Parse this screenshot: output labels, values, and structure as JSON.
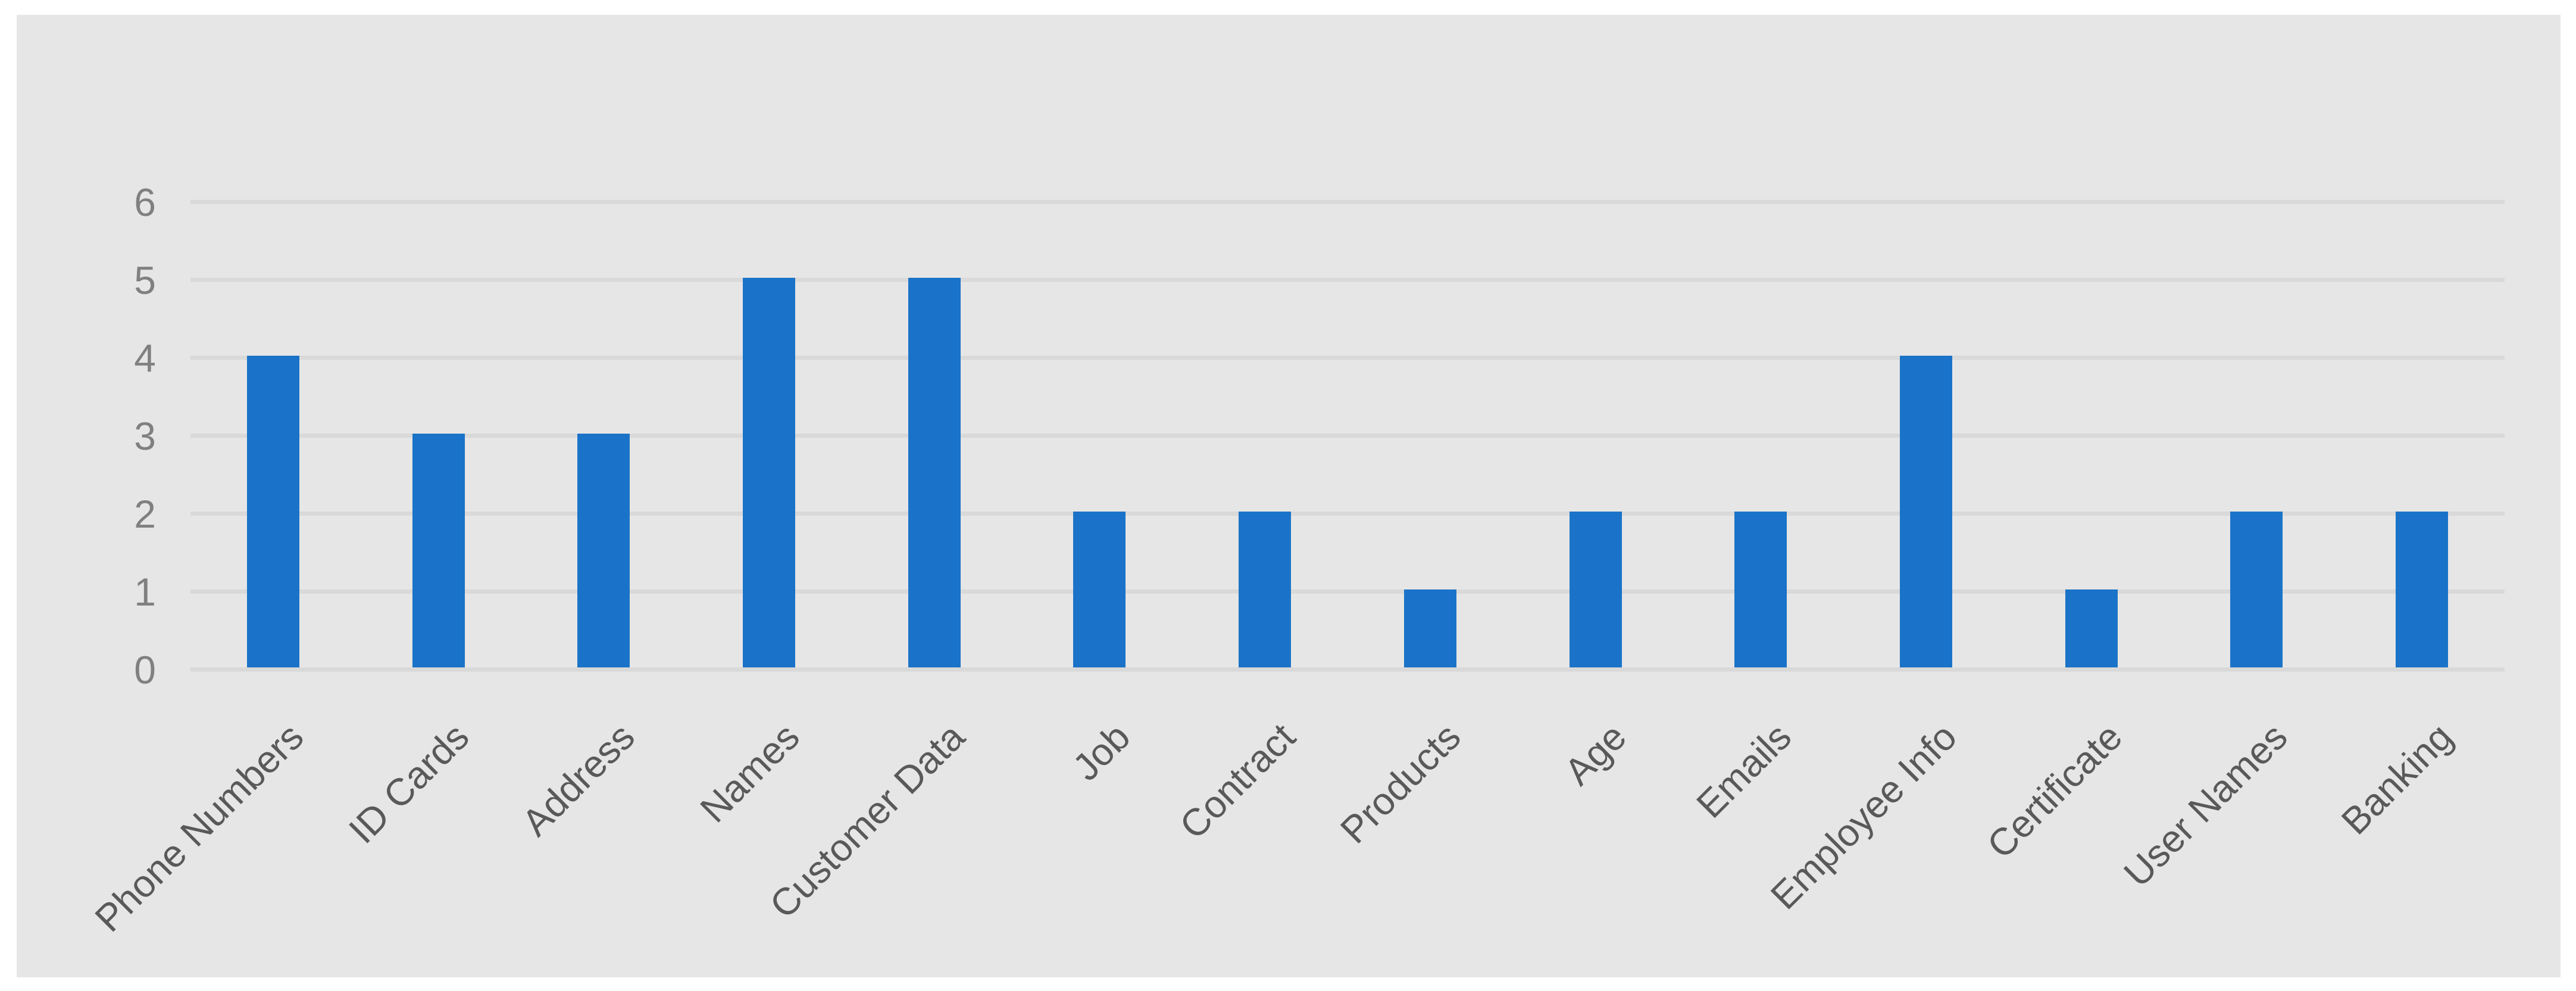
{
  "page": {
    "background_color": "#FFFFFF"
  },
  "chart_data": {
    "type": "bar",
    "categories": [
      "Phone Numbers",
      "ID Cards",
      "Address",
      "Names",
      "Customer Data",
      "Job",
      "Contract",
      "Products",
      "Age",
      "Emails",
      "Employee Info",
      "Certificate",
      "User Names",
      "Banking"
    ],
    "values": [
      4,
      3,
      3,
      5,
      5,
      2,
      2,
      1,
      2,
      2,
      4,
      1,
      2,
      2
    ],
    "yticks": [
      0,
      1,
      2,
      3,
      4,
      5,
      6
    ],
    "ylim": [
      0,
      6
    ],
    "grid": true,
    "legend": false,
    "xtick_rotation_deg": -45,
    "colors": {
      "bar": "#1A73C8",
      "plot_background": "#E6E6E6",
      "gridline": "#D9D9D9",
      "ytick_text": "#808080",
      "xtick_text": "#595959"
    }
  }
}
